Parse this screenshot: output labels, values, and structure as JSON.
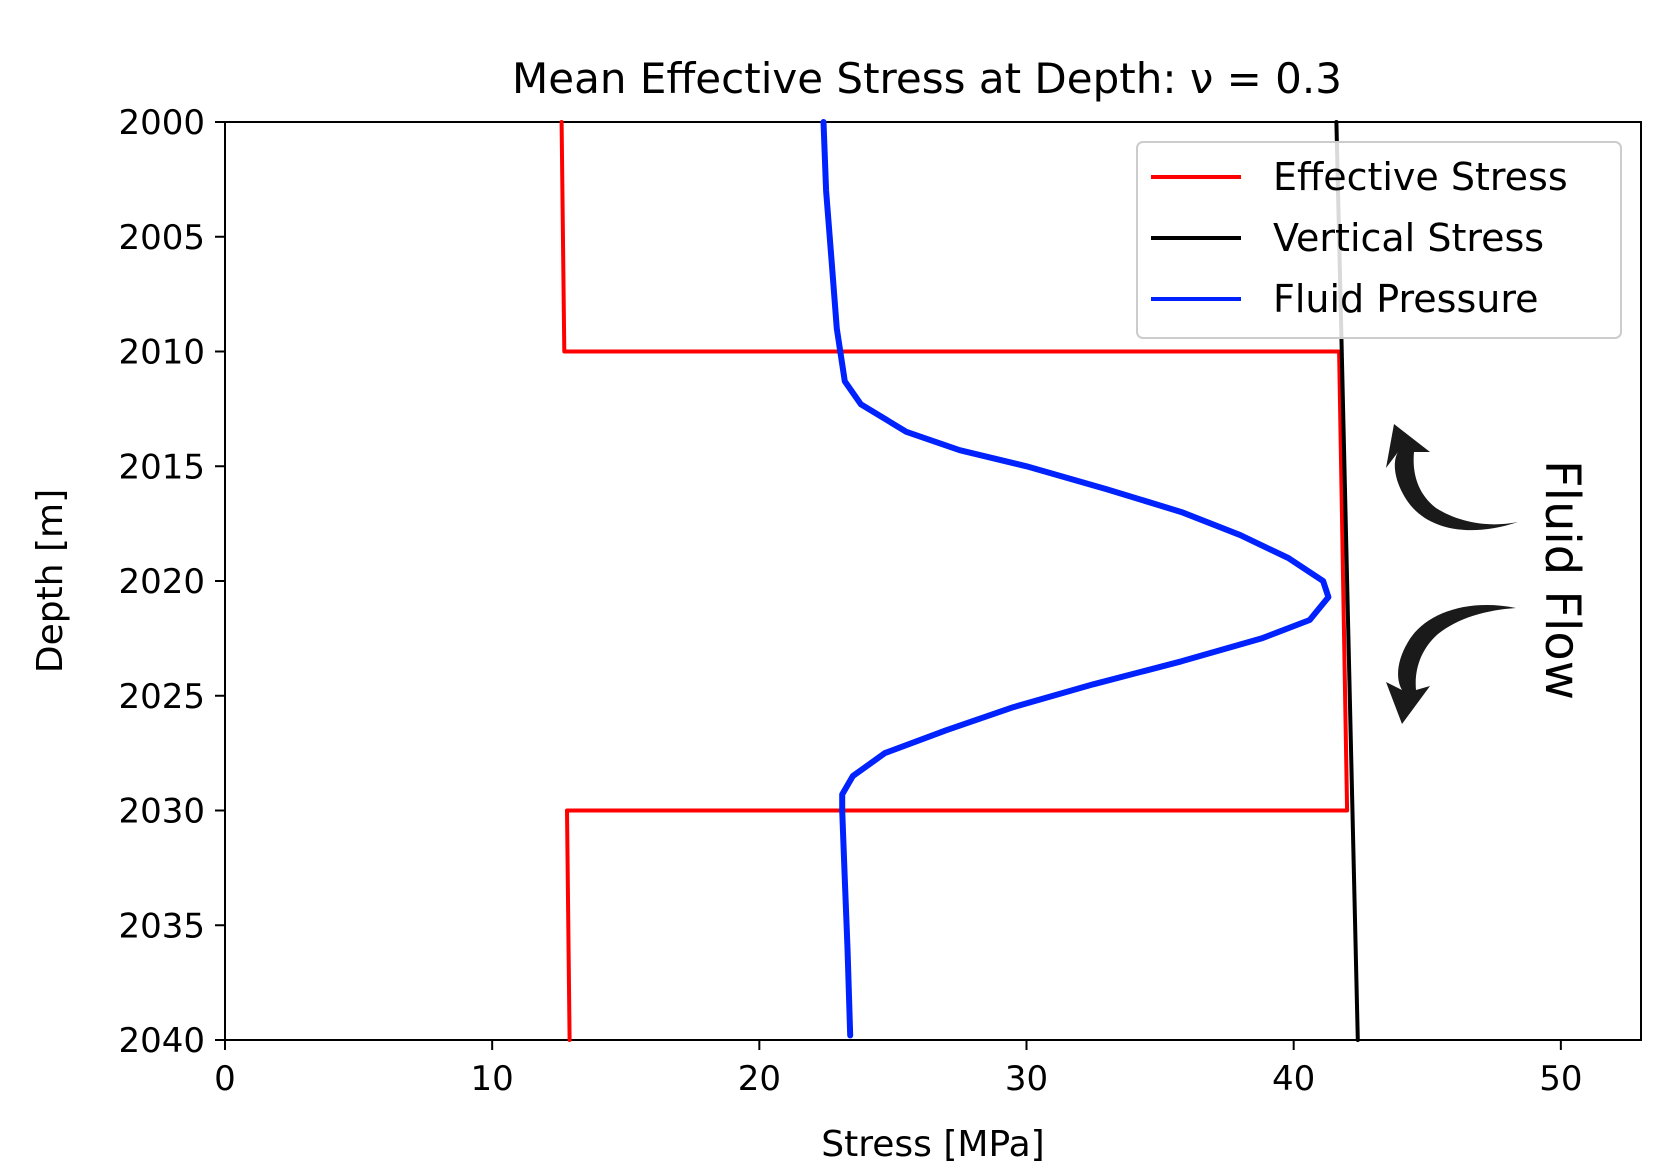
{
  "chart_data": {
    "type": "line",
    "title": "Mean Effective Stress at Depth: ν = 0.3",
    "xlabel": "Stress [MPa]",
    "ylabel": "Depth [m]",
    "xlim": [
      0,
      53
    ],
    "ylim": [
      2040,
      2000
    ],
    "y_inverted": true,
    "grid": false,
    "xticks": [
      0,
      10,
      20,
      30,
      40,
      50
    ],
    "yticks": [
      2000,
      2005,
      2010,
      2015,
      2020,
      2025,
      2030,
      2035,
      2040
    ],
    "legend_placement": "top-right",
    "series": [
      {
        "name": "Effective Stress",
        "color": "#ff0000",
        "points": [
          [
            12.6,
            2000
          ],
          [
            12.7,
            2010
          ],
          [
            41.7,
            2010
          ],
          [
            42.0,
            2030
          ],
          [
            12.8,
            2030
          ],
          [
            12.9,
            2040
          ]
        ]
      },
      {
        "name": "Vertical Stress",
        "color": "#000000",
        "points": [
          [
            41.6,
            2000
          ],
          [
            42.4,
            2040
          ]
        ]
      },
      {
        "name": "Fluid Pressure",
        "color": "#0022ff",
        "points": [
          [
            22.4,
            2000
          ],
          [
            22.5,
            2003
          ],
          [
            22.7,
            2006
          ],
          [
            22.9,
            2009
          ],
          [
            23.2,
            2011.3
          ],
          [
            23.8,
            2012.3
          ],
          [
            25.5,
            2013.5
          ],
          [
            27.5,
            2014.3
          ],
          [
            30.0,
            2015.0
          ],
          [
            33.0,
            2016.0
          ],
          [
            35.8,
            2017.0
          ],
          [
            38.0,
            2018.0
          ],
          [
            39.8,
            2019.0
          ],
          [
            41.1,
            2020.0
          ],
          [
            41.3,
            2020.7
          ],
          [
            40.6,
            2021.7
          ],
          [
            38.8,
            2022.5
          ],
          [
            35.8,
            2023.5
          ],
          [
            32.5,
            2024.5
          ],
          [
            29.5,
            2025.5
          ],
          [
            27.0,
            2026.5
          ],
          [
            24.7,
            2027.5
          ],
          [
            23.5,
            2028.5
          ],
          [
            23.1,
            2029.3
          ],
          [
            23.1,
            2030.0
          ],
          [
            23.2,
            2033.0
          ],
          [
            23.3,
            2036.0
          ],
          [
            23.4,
            2039.8
          ]
        ]
      }
    ],
    "annotations": [
      {
        "text": "Fluid Flow",
        "rotation": 90
      }
    ]
  }
}
